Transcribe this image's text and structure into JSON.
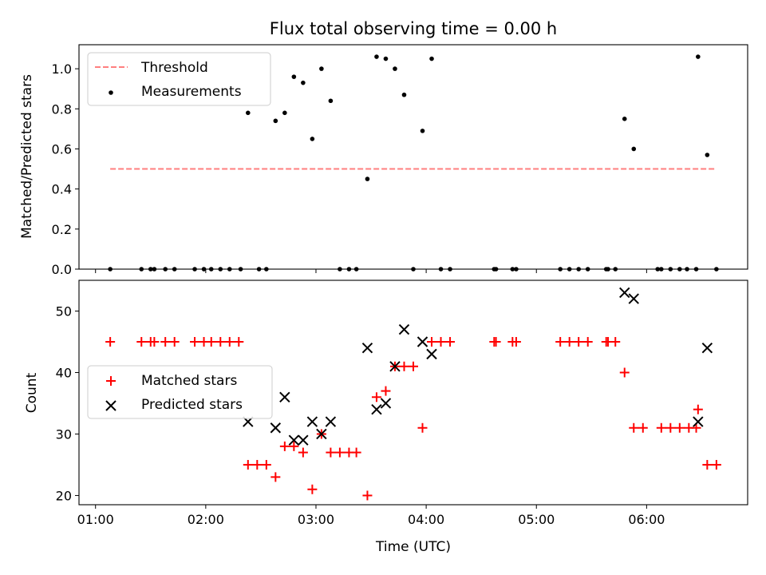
{
  "chart_data": [
    {
      "type": "scatter",
      "title": "Flux total observing time = 0.00 h",
      "xlabel": "",
      "ylabel": "Matched/Predicted stars",
      "xlim": [
        "00:51",
        "06:55"
      ],
      "ylim": [
        0,
        1.12
      ],
      "yticks": [
        "0.0",
        "0.2",
        "0.4",
        "0.6",
        "0.8",
        "1.0"
      ],
      "ytick_values": [
        0,
        0.2,
        0.4,
        0.6,
        0.8,
        1.0
      ],
      "legend_position": "upper left",
      "series": [
        {
          "name": "Threshold",
          "style": "dashed-line",
          "color": "#ff7f7f",
          "points": [
            [
              "01:08",
              0.5
            ],
            [
              "06:37",
              0.5
            ]
          ]
        },
        {
          "name": "Measurements",
          "style": "dot",
          "color": "#000000",
          "points": [
            [
              "01:08",
              0.0
            ],
            [
              "01:25",
              0.0
            ],
            [
              "01:30",
              0.0
            ],
            [
              "01:32",
              0.0
            ],
            [
              "01:38",
              0.0
            ],
            [
              "01:43",
              0.0
            ],
            [
              "01:54",
              0.0
            ],
            [
              "01:59",
              0.0
            ],
            [
              "02:03",
              0.0
            ],
            [
              "02:08",
              0.0
            ],
            [
              "02:13",
              0.0
            ],
            [
              "02:19",
              0.0
            ],
            [
              "02:23",
              0.78
            ],
            [
              "02:29",
              0.0
            ],
            [
              "02:33",
              0.0
            ],
            [
              "02:38",
              0.74
            ],
            [
              "02:43",
              0.78
            ],
            [
              "02:48",
              0.96
            ],
            [
              "02:53",
              0.93
            ],
            [
              "02:58",
              0.65
            ],
            [
              "03:03",
              1.0
            ],
            [
              "03:08",
              0.84
            ],
            [
              "03:13",
              0.0
            ],
            [
              "03:18",
              0.0
            ],
            [
              "03:22",
              0.0
            ],
            [
              "03:28",
              0.45
            ],
            [
              "03:33",
              1.06
            ],
            [
              "03:38",
              1.05
            ],
            [
              "03:43",
              1.0
            ],
            [
              "03:48",
              0.87
            ],
            [
              "03:53",
              0.0
            ],
            [
              "03:58",
              0.69
            ],
            [
              "04:03",
              1.05
            ],
            [
              "04:08",
              0.0
            ],
            [
              "04:13",
              0.0
            ],
            [
              "04:37",
              0.0
            ],
            [
              "04:38",
              0.0
            ],
            [
              "04:47",
              0.0
            ],
            [
              "04:49",
              0.0
            ],
            [
              "05:13",
              0.0
            ],
            [
              "05:18",
              0.0
            ],
            [
              "05:23",
              0.0
            ],
            [
              "05:28",
              0.0
            ],
            [
              "05:38",
              0.0
            ],
            [
              "05:39",
              0.0
            ],
            [
              "05:43",
              0.0
            ],
            [
              "05:48",
              0.75
            ],
            [
              "05:53",
              0.6
            ],
            [
              "06:06",
              0.0
            ],
            [
              "06:08",
              0.0
            ],
            [
              "06:13",
              0.0
            ],
            [
              "06:18",
              0.0
            ],
            [
              "06:22",
              0.0
            ],
            [
              "06:27",
              0.0
            ],
            [
              "06:28",
              1.06
            ],
            [
              "06:33",
              0.57
            ],
            [
              "06:38",
              0.0
            ]
          ]
        }
      ]
    },
    {
      "type": "scatter",
      "title": "",
      "xlabel": "Time (UTC)",
      "ylabel": "Count",
      "xlim": [
        "00:51",
        "06:55"
      ],
      "ylim": [
        18.5,
        55
      ],
      "xticks": [
        "01:00",
        "02:00",
        "03:00",
        "04:00",
        "05:00",
        "06:00"
      ],
      "yticks": [
        "20",
        "30",
        "40",
        "50"
      ],
      "ytick_values": [
        20,
        30,
        40,
        50
      ],
      "legend_position": "center left",
      "series": [
        {
          "name": "Matched stars",
          "marker": "plus",
          "color": "#ff0000",
          "points": [
            [
              "01:08",
              45
            ],
            [
              "01:25",
              45
            ],
            [
              "01:30",
              45
            ],
            [
              "01:32",
              45
            ],
            [
              "01:38",
              45
            ],
            [
              "01:43",
              45
            ],
            [
              "01:54",
              45
            ],
            [
              "01:59",
              45
            ],
            [
              "02:03",
              45
            ],
            [
              "02:08",
              45
            ],
            [
              "02:13",
              45
            ],
            [
              "02:18",
              45
            ],
            [
              "02:23",
              25
            ],
            [
              "02:28",
              25
            ],
            [
              "02:33",
              25
            ],
            [
              "02:38",
              23
            ],
            [
              "02:43",
              28
            ],
            [
              "02:48",
              28
            ],
            [
              "02:53",
              27
            ],
            [
              "02:58",
              21
            ],
            [
              "03:03",
              30
            ],
            [
              "03:08",
              27
            ],
            [
              "03:13",
              27
            ],
            [
              "03:18",
              27
            ],
            [
              "03:22",
              27
            ],
            [
              "03:28",
              20
            ],
            [
              "03:33",
              36
            ],
            [
              "03:38",
              37
            ],
            [
              "03:43",
              41
            ],
            [
              "03:48",
              41
            ],
            [
              "03:53",
              41
            ],
            [
              "03:58",
              31
            ],
            [
              "04:03",
              45
            ],
            [
              "04:08",
              45
            ],
            [
              "04:13",
              45
            ],
            [
              "04:37",
              45
            ],
            [
              "04:38",
              45
            ],
            [
              "04:47",
              45
            ],
            [
              "04:49",
              45
            ],
            [
              "05:13",
              45
            ],
            [
              "05:18",
              45
            ],
            [
              "05:23",
              45
            ],
            [
              "05:28",
              45
            ],
            [
              "05:38",
              45
            ],
            [
              "05:39",
              45
            ],
            [
              "05:43",
              45
            ],
            [
              "05:48",
              40
            ],
            [
              "05:53",
              31
            ],
            [
              "05:58",
              31
            ],
            [
              "06:08",
              31
            ],
            [
              "06:13",
              31
            ],
            [
              "06:18",
              31
            ],
            [
              "06:23",
              31
            ],
            [
              "06:27",
              31
            ],
            [
              "06:28",
              34
            ],
            [
              "06:33",
              25
            ],
            [
              "06:38",
              25
            ]
          ]
        },
        {
          "name": "Predicted stars",
          "marker": "x",
          "color": "#000000",
          "points": [
            [
              "02:23",
              32
            ],
            [
              "02:38",
              31
            ],
            [
              "02:43",
              36
            ],
            [
              "02:48",
              29
            ],
            [
              "02:53",
              29
            ],
            [
              "02:58",
              32
            ],
            [
              "03:03",
              30
            ],
            [
              "03:08",
              32
            ],
            [
              "03:28",
              44
            ],
            [
              "03:33",
              34
            ],
            [
              "03:38",
              35
            ],
            [
              "03:43",
              41
            ],
            [
              "03:48",
              47
            ],
            [
              "03:58",
              45
            ],
            [
              "04:03",
              43
            ],
            [
              "05:48",
              53
            ],
            [
              "05:53",
              52
            ],
            [
              "06:28",
              32
            ],
            [
              "06:33",
              44
            ]
          ]
        }
      ]
    }
  ]
}
